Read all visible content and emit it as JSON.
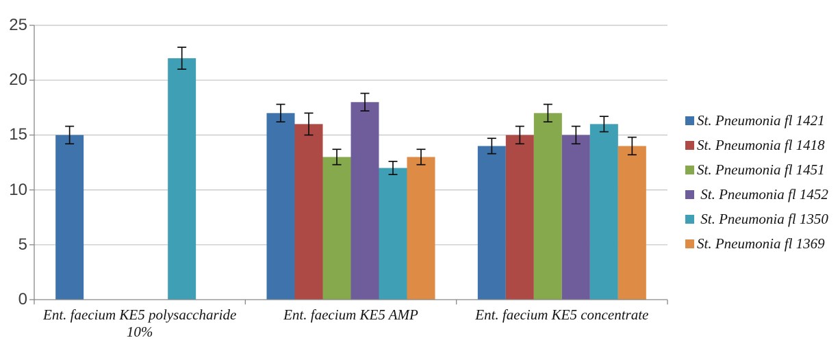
{
  "chart": {
    "background": "#ffffff",
    "axis_color": "#898989",
    "grid_color": "#c4c4c4",
    "tick_label_color": "#3f3f3f",
    "error_bar_color": "#0d0d0d"
  },
  "chart_data": {
    "type": "bar",
    "title": "",
    "xlabel": "",
    "ylabel": "",
    "categories": [
      "Ent. faecium KE5 polysaccharide 10%",
      "Ent. faecium KE5 AMP",
      "Ent. faecium KE5 concentrate"
    ],
    "series": [
      {
        "name": "St. Pneumonia fl 1421",
        "color": "#3e73ac",
        "values": [
          15,
          17,
          14
        ],
        "errors": [
          0.8,
          0.8,
          0.7
        ]
      },
      {
        "name": "St. Pneumonia fl 1418",
        "color": "#ae4a46",
        "values": [
          null,
          16,
          15
        ],
        "errors": [
          0,
          1.0,
          0.8
        ]
      },
      {
        "name": "St. Pneumonia fl 1451",
        "color": "#87a94e",
        "values": [
          null,
          13,
          17
        ],
        "errors": [
          0,
          0.7,
          0.8
        ]
      },
      {
        "name": " St. Pneumonia fl 1452",
        "color": "#6e5c9b",
        "values": [
          null,
          18,
          15
        ],
        "errors": [
          0,
          0.8,
          0.8
        ]
      },
      {
        "name": " St. Pneumonia fl 1350",
        "color": "#3fa0b5",
        "values": [
          22,
          12,
          16
        ],
        "errors": [
          1.0,
          0.6,
          0.7
        ]
      },
      {
        "name": "St. Pneumonia fl 1369",
        "color": "#de8b45",
        "values": [
          null,
          13,
          14
        ],
        "errors": [
          0,
          0.7,
          0.8
        ]
      }
    ],
    "y_ticks": [
      0,
      5,
      10,
      15,
      20,
      25
    ],
    "ylim": [
      0,
      25
    ],
    "grid": true,
    "legend_position": "right"
  }
}
